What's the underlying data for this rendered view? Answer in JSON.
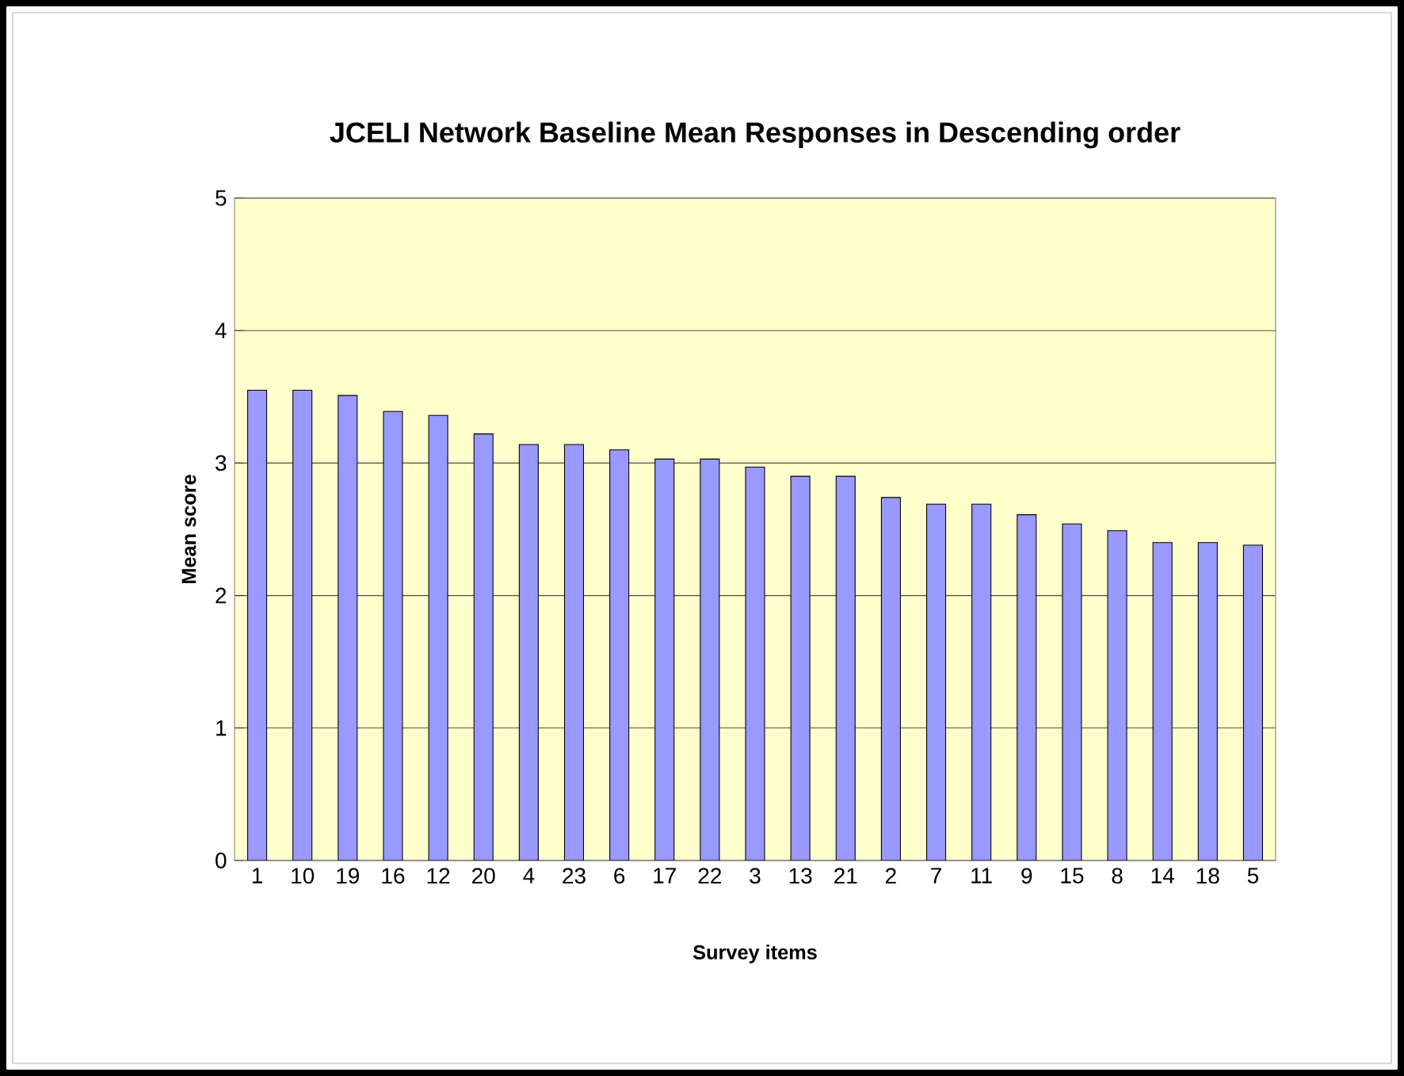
{
  "chart_data": {
    "type": "bar",
    "title": "JCELI Network Baseline Mean Responses in Descending order",
    "xlabel": "Survey items",
    "ylabel": "Mean score",
    "categories": [
      "1",
      "10",
      "19",
      "16",
      "12",
      "20",
      "4",
      "23",
      "6",
      "17",
      "22",
      "3",
      "13",
      "21",
      "2",
      "7",
      "11",
      "9",
      "15",
      "8",
      "14",
      "18",
      "5"
    ],
    "values": [
      3.55,
      3.55,
      3.51,
      3.39,
      3.36,
      3.22,
      3.14,
      3.14,
      3.1,
      3.03,
      3.03,
      2.97,
      2.9,
      2.9,
      2.74,
      2.69,
      2.69,
      2.61,
      2.54,
      2.49,
      2.4,
      2.4,
      2.38
    ],
    "color": "#9999ff",
    "ylim": [
      0,
      5
    ],
    "yticks": [
      0,
      1,
      2,
      3,
      4,
      5
    ],
    "grid": "y"
  }
}
